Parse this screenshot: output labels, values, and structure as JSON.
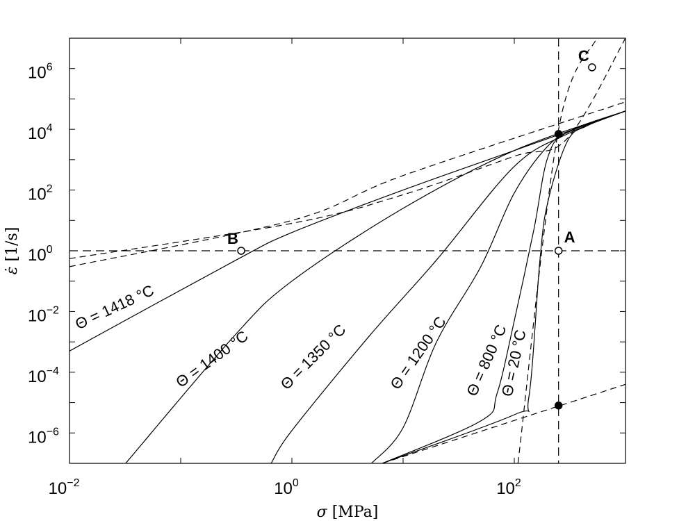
{
  "chart_data": {
    "type": "line",
    "xlabel_sym": "σ",
    "xlabel_unit": "[MPa]",
    "ylabel_sym": "ε̇",
    "ylabel_unit": "[1/s]",
    "xscale": "log",
    "yscale": "log",
    "xlim": [
      0.01,
      1000
    ],
    "ylim": [
      1e-07,
      10000000.0
    ],
    "grid": false,
    "x_ticks": [
      {
        "value": 0.01,
        "base": "10",
        "exp": "−2"
      },
      {
        "value": 1,
        "base": "10",
        "exp": "0"
      },
      {
        "value": 100,
        "base": "10",
        "exp": "2"
      }
    ],
    "y_ticks": [
      {
        "value": 1000000.0,
        "base": "10",
        "exp": "6"
      },
      {
        "value": 10000.0,
        "base": "10",
        "exp": "4"
      },
      {
        "value": 100.0,
        "base": "10",
        "exp": "2"
      },
      {
        "value": 1,
        "base": "10",
        "exp": "0"
      },
      {
        "value": 0.01,
        "base": "10",
        "exp": "−2"
      },
      {
        "value": 0.0001,
        "base": "10",
        "exp": "−4"
      },
      {
        "value": 1e-06,
        "base": "10",
        "exp": "−6"
      }
    ],
    "series": [
      {
        "name": "Θ = 1418 °C",
        "style": "solid",
        "points": [
          [
            0.01,
            0.0005
          ],
          [
            0.3,
            0.45
          ],
          [
            1,
            4
          ],
          [
            10,
            100
          ],
          [
            100,
            2000
          ],
          [
            1000,
            40000
          ]
        ]
      },
      {
        "name": "Θ = 1400 °C",
        "style": "solid",
        "points": [
          [
            0.032,
            1e-07
          ],
          [
            0.3,
            0.0015
          ],
          [
            1,
            0.1
          ],
          [
            10,
            25
          ],
          [
            100,
            2000
          ],
          [
            1000,
            40000
          ]
        ]
      },
      {
        "name": "Θ = 1350 °C",
        "style": "solid",
        "points": [
          [
            0.65,
            1e-07
          ],
          [
            1,
            1.2e-06
          ],
          [
            5,
            0.0016
          ],
          [
            20,
            0.5
          ],
          [
            100,
            600
          ],
          [
            300,
            7000
          ],
          [
            1000,
            40000
          ]
        ]
      },
      {
        "name": "Θ = 1200 °C",
        "style": "solid",
        "points": [
          [
            5.2,
            1e-07
          ],
          [
            10,
            1.5e-06
          ],
          [
            20,
            0.001
          ],
          [
            50,
            0.3
          ],
          [
            100,
            80
          ],
          [
            200,
            2800
          ],
          [
            350,
            10000
          ],
          [
            1000,
            40000
          ]
        ]
      },
      {
        "name": "Θ =  800 °C",
        "style": "solid",
        "points": [
          [
            6.5,
            1e-07
          ],
          [
            50,
            2.5e-06
          ],
          [
            70,
            2e-05
          ],
          [
            100,
            0.005
          ],
          [
            150,
            5
          ],
          [
            200,
            1200
          ],
          [
            300,
            8000
          ],
          [
            1000,
            40000
          ]
        ]
      },
      {
        "name": "Θ =  20 °C",
        "style": "solid",
        "points": [
          [
            6.5,
            1e-07
          ],
          [
            100,
            4e-06
          ],
          [
            135,
            1.5e-05
          ],
          [
            170,
            0.5
          ],
          [
            200,
            40
          ],
          [
            300,
            4000
          ],
          [
            450,
            13000
          ],
          [
            1000,
            40000
          ]
        ]
      },
      {
        "name": "",
        "style": "dashed",
        "points": [
          [
            0.01,
            0.3
          ],
          [
            1,
            10
          ],
          [
            10,
            300
          ],
          [
            1000,
            80000
          ]
        ]
      },
      {
        "name": "",
        "style": "dashed",
        "points": [
          [
            0.01,
            0.55
          ],
          [
            1,
            8
          ],
          [
            10,
            70
          ],
          [
            100,
            1300
          ],
          [
            300,
            5000
          ],
          [
            1000,
            10000000.0
          ]
        ]
      },
      {
        "name": "",
        "style": "dashed",
        "points": [
          [
            6.5,
            1e-07
          ],
          [
            1000,
            4e-05
          ]
        ]
      },
      {
        "name": "",
        "style": "dashed",
        "points": [
          [
            108,
            1e-07
          ],
          [
            250,
            10000.0
          ],
          [
            550,
            10000000.0
          ]
        ]
      }
    ],
    "reference_lines": [
      {
        "orientation": "horizontal",
        "y": 1
      },
      {
        "orientation": "vertical",
        "x": 250
      }
    ],
    "markers": [
      {
        "label": "A",
        "x": 250,
        "y": 1,
        "filled": false
      },
      {
        "label": "B",
        "x": 0.35,
        "y": 1,
        "filled": false
      },
      {
        "label": "C",
        "x": 500,
        "y": 1100000.0,
        "filled": false
      },
      {
        "label": "",
        "x": 250,
        "y": 7000.0,
        "filled": true
      },
      {
        "label": "",
        "x": 250,
        "y": 8e-06,
        "filled": true
      }
    ],
    "curve_labels": [
      {
        "text": "Θ = 1418 °C",
        "x": 0.012,
        "y": 0.0025,
        "angle": -25
      },
      {
        "text": "Θ = 1400 °C",
        "x": 0.1,
        "y": 3e-05,
        "angle": -36
      },
      {
        "text": "Θ = 1350 °C",
        "x": 0.9,
        "y": 2.5e-05,
        "angle": -45
      },
      {
        "text": "Θ = 1200 °C",
        "x": 9,
        "y": 2.5e-05,
        "angle": -55
      },
      {
        "text": "Θ =  800 °C",
        "x": 45,
        "y": 1.5e-05,
        "angle": -66
      },
      {
        "text": "Θ =  20 °C",
        "x": 95,
        "y": 1.5e-05,
        "angle": -78
      }
    ]
  }
}
